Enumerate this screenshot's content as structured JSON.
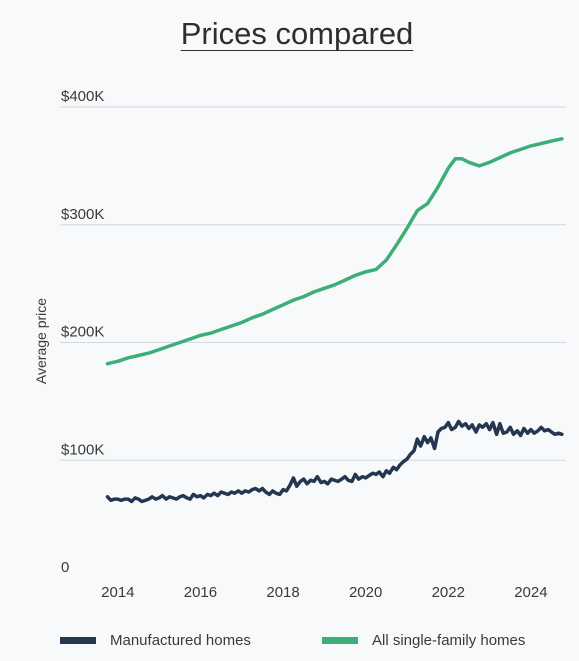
{
  "chart_data": {
    "type": "line",
    "title": "Prices compared",
    "ylabel": "Average price",
    "xlabel": "",
    "ylim": [
      0,
      400000
    ],
    "xlim": [
      2012.6,
      2024.85
    ],
    "y_ticks": [
      {
        "value": 0,
        "label": "0"
      },
      {
        "value": 100000,
        "label": "$100K"
      },
      {
        "value": 200000,
        "label": "$200K"
      },
      {
        "value": 300000,
        "label": "$300K"
      },
      {
        "value": 400000,
        "label": "$400K"
      }
    ],
    "x_ticks": [
      {
        "value": 2014,
        "label": "2014"
      },
      {
        "value": 2016,
        "label": "2016"
      },
      {
        "value": 2018,
        "label": "2018"
      },
      {
        "value": 2020,
        "label": "2020"
      },
      {
        "value": 2022,
        "label": "2022"
      },
      {
        "value": 2024,
        "label": "2024"
      }
    ],
    "grid": true,
    "legend_position": "bottom",
    "series": [
      {
        "name": "Manufactured homes",
        "color": "#253750",
        "points": [
          [
            2013.75,
            69000
          ],
          [
            2013.83,
            66000
          ],
          [
            2013.92,
            67000
          ],
          [
            2014.0,
            67000
          ],
          [
            2014.08,
            66000
          ],
          [
            2014.17,
            67000
          ],
          [
            2014.25,
            67000
          ],
          [
            2014.33,
            65000
          ],
          [
            2014.42,
            68000
          ],
          [
            2014.5,
            67000
          ],
          [
            2014.58,
            65000
          ],
          [
            2014.67,
            66000
          ],
          [
            2014.75,
            67000
          ],
          [
            2014.83,
            69000
          ],
          [
            2014.92,
            67000
          ],
          [
            2015.0,
            68000
          ],
          [
            2015.08,
            70000
          ],
          [
            2015.17,
            67000
          ],
          [
            2015.25,
            69000
          ],
          [
            2015.33,
            68000
          ],
          [
            2015.42,
            67000
          ],
          [
            2015.5,
            69000
          ],
          [
            2015.58,
            70000
          ],
          [
            2015.67,
            68000
          ],
          [
            2015.75,
            67000
          ],
          [
            2015.83,
            71000
          ],
          [
            2015.92,
            69000
          ],
          [
            2016.0,
            70000
          ],
          [
            2016.08,
            68000
          ],
          [
            2016.17,
            71000
          ],
          [
            2016.25,
            70000
          ],
          [
            2016.33,
            72000
          ],
          [
            2016.42,
            70000
          ],
          [
            2016.5,
            73000
          ],
          [
            2016.58,
            72000
          ],
          [
            2016.67,
            71000
          ],
          [
            2016.75,
            73000
          ],
          [
            2016.83,
            72000
          ],
          [
            2016.92,
            74000
          ],
          [
            2017.0,
            72000
          ],
          [
            2017.08,
            74000
          ],
          [
            2017.17,
            73000
          ],
          [
            2017.25,
            75000
          ],
          [
            2017.33,
            76000
          ],
          [
            2017.42,
            74000
          ],
          [
            2017.5,
            76000
          ],
          [
            2017.58,
            73000
          ],
          [
            2017.67,
            71000
          ],
          [
            2017.75,
            74000
          ],
          [
            2017.83,
            72000
          ],
          [
            2017.92,
            71000
          ],
          [
            2018.0,
            75000
          ],
          [
            2018.08,
            74000
          ],
          [
            2018.17,
            79000
          ],
          [
            2018.25,
            85000
          ],
          [
            2018.33,
            78000
          ],
          [
            2018.42,
            82000
          ],
          [
            2018.5,
            84000
          ],
          [
            2018.58,
            80000
          ],
          [
            2018.67,
            83000
          ],
          [
            2018.75,
            82000
          ],
          [
            2018.83,
            86000
          ],
          [
            2018.92,
            81000
          ],
          [
            2019.0,
            82000
          ],
          [
            2019.08,
            80000
          ],
          [
            2019.17,
            84000
          ],
          [
            2019.25,
            83000
          ],
          [
            2019.33,
            82000
          ],
          [
            2019.42,
            84000
          ],
          [
            2019.5,
            86000
          ],
          [
            2019.58,
            83000
          ],
          [
            2019.67,
            82000
          ],
          [
            2019.75,
            88000
          ],
          [
            2019.83,
            84000
          ],
          [
            2019.92,
            86000
          ],
          [
            2020.0,
            85000
          ],
          [
            2020.08,
            87000
          ],
          [
            2020.17,
            89000
          ],
          [
            2020.25,
            88000
          ],
          [
            2020.33,
            90000
          ],
          [
            2020.42,
            86000
          ],
          [
            2020.5,
            91000
          ],
          [
            2020.58,
            89000
          ],
          [
            2020.67,
            94000
          ],
          [
            2020.75,
            92000
          ],
          [
            2020.83,
            96000
          ],
          [
            2020.92,
            99000
          ],
          [
            2021.0,
            101000
          ],
          [
            2021.08,
            105000
          ],
          [
            2021.17,
            108000
          ],
          [
            2021.25,
            118000
          ],
          [
            2021.33,
            112000
          ],
          [
            2021.42,
            120000
          ],
          [
            2021.5,
            115000
          ],
          [
            2021.58,
            119000
          ],
          [
            2021.67,
            110000
          ],
          [
            2021.75,
            124000
          ],
          [
            2021.83,
            127000
          ],
          [
            2021.92,
            128000
          ],
          [
            2022.0,
            132000
          ],
          [
            2022.08,
            126000
          ],
          [
            2022.17,
            128000
          ],
          [
            2022.25,
            133000
          ],
          [
            2022.33,
            129000
          ],
          [
            2022.42,
            131000
          ],
          [
            2022.5,
            127000
          ],
          [
            2022.58,
            130000
          ],
          [
            2022.67,
            124000
          ],
          [
            2022.75,
            130000
          ],
          [
            2022.83,
            128000
          ],
          [
            2022.92,
            131000
          ],
          [
            2023.0,
            126000
          ],
          [
            2023.08,
            132000
          ],
          [
            2023.17,
            122000
          ],
          [
            2023.25,
            131000
          ],
          [
            2023.33,
            123000
          ],
          [
            2023.42,
            124000
          ],
          [
            2023.5,
            128000
          ],
          [
            2023.58,
            122000
          ],
          [
            2023.67,
            125000
          ],
          [
            2023.75,
            121000
          ],
          [
            2023.83,
            127000
          ],
          [
            2023.92,
            123000
          ],
          [
            2024.0,
            126000
          ],
          [
            2024.08,
            123000
          ],
          [
            2024.17,
            125000
          ],
          [
            2024.25,
            128000
          ],
          [
            2024.33,
            125000
          ],
          [
            2024.42,
            126000
          ],
          [
            2024.5,
            124000
          ],
          [
            2024.58,
            122000
          ],
          [
            2024.67,
            123000
          ],
          [
            2024.75,
            122000
          ]
        ]
      },
      {
        "name": "All single-family homes",
        "color": "#3caf78",
        "points": [
          [
            2013.75,
            182000
          ],
          [
            2014.0,
            184000
          ],
          [
            2014.25,
            187000
          ],
          [
            2014.5,
            189000
          ],
          [
            2014.75,
            191000
          ],
          [
            2015.0,
            194000
          ],
          [
            2015.25,
            197000
          ],
          [
            2015.5,
            200000
          ],
          [
            2015.75,
            203000
          ],
          [
            2016.0,
            206000
          ],
          [
            2016.25,
            208000
          ],
          [
            2016.5,
            211000
          ],
          [
            2016.75,
            214000
          ],
          [
            2017.0,
            217000
          ],
          [
            2017.25,
            221000
          ],
          [
            2017.5,
            224000
          ],
          [
            2017.75,
            228000
          ],
          [
            2018.0,
            232000
          ],
          [
            2018.25,
            236000
          ],
          [
            2018.5,
            239000
          ],
          [
            2018.75,
            243000
          ],
          [
            2019.0,
            246000
          ],
          [
            2019.25,
            249000
          ],
          [
            2019.5,
            253000
          ],
          [
            2019.75,
            257000
          ],
          [
            2020.0,
            260000
          ],
          [
            2020.25,
            262000
          ],
          [
            2020.5,
            270000
          ],
          [
            2020.75,
            283000
          ],
          [
            2021.0,
            297000
          ],
          [
            2021.25,
            312000
          ],
          [
            2021.5,
            318000
          ],
          [
            2021.75,
            332000
          ],
          [
            2022.0,
            348000
          ],
          [
            2022.17,
            356000
          ],
          [
            2022.33,
            356000
          ],
          [
            2022.5,
            353000
          ],
          [
            2022.75,
            350000
          ],
          [
            2023.0,
            353000
          ],
          [
            2023.25,
            357000
          ],
          [
            2023.5,
            361000
          ],
          [
            2023.75,
            364000
          ],
          [
            2024.0,
            367000
          ],
          [
            2024.25,
            369000
          ],
          [
            2024.5,
            371000
          ],
          [
            2024.75,
            373000
          ]
        ]
      }
    ]
  }
}
